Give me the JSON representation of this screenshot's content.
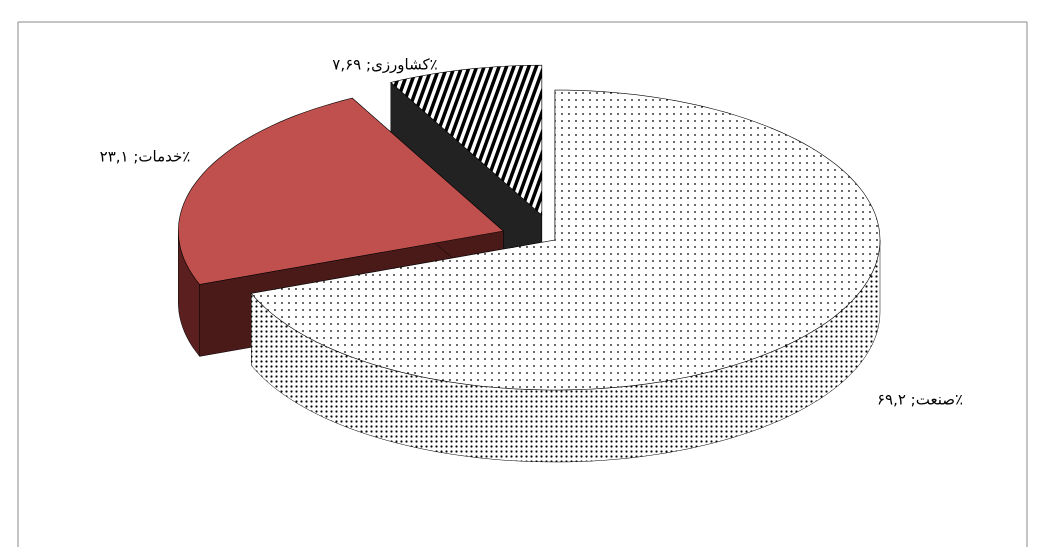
{
  "chart_data": {
    "type": "pie",
    "three_d": true,
    "categories": [
      "صنعت",
      "خدمات",
      "کشاورزی"
    ],
    "values": [
      69.2,
      23.1,
      7.69
    ],
    "value_labels": [
      "صنعت; ۶۹,۲٪",
      "خدمات; ۲۳,۱٪",
      "کشاورزی; ۷,۶۹٪"
    ],
    "colors": [
      "#ffffff",
      "#c0504d",
      "#000000"
    ],
    "patterns": [
      "dots",
      "solid",
      "stripes"
    ],
    "exploded": [
      false,
      true,
      true
    ]
  }
}
